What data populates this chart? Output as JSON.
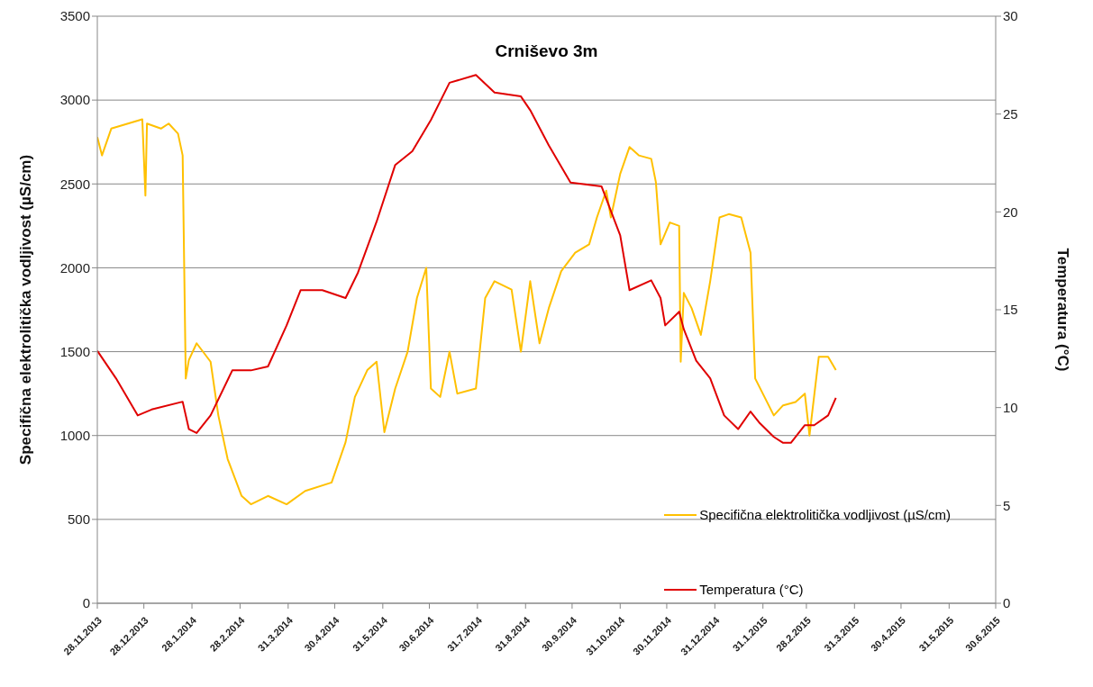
{
  "chart_data": {
    "type": "line",
    "title": "Crniševo 3m",
    "ylabel": "Specifična elektrolitička vodljivost (µS/cm)",
    "y2label": "Temperatura (°C)",
    "xlim": [
      "2013-11-28",
      "2015-06-30"
    ],
    "xticks": [
      {
        "value": "2013-11-28",
        "label": "28.11.2013"
      },
      {
        "value": "2013-12-28",
        "label": "28.12.2013"
      },
      {
        "value": "2014-01-28",
        "label": "28.1.2014"
      },
      {
        "value": "2014-02-28",
        "label": "28.2.2014"
      },
      {
        "value": "2014-03-31",
        "label": "31.3.2014"
      },
      {
        "value": "2014-04-30",
        "label": "30.4.2014"
      },
      {
        "value": "2014-05-31",
        "label": "31.5.2014"
      },
      {
        "value": "2014-06-30",
        "label": "30.6.2014"
      },
      {
        "value": "2014-07-31",
        "label": "31.7.2014"
      },
      {
        "value": "2014-08-31",
        "label": "31.8.2014"
      },
      {
        "value": "2014-09-30",
        "label": "30.9.2014"
      },
      {
        "value": "2014-10-31",
        "label": "31.10.2014"
      },
      {
        "value": "2014-11-30",
        "label": "30.11.2014"
      },
      {
        "value": "2014-12-31",
        "label": "31.12.2014"
      },
      {
        "value": "2015-01-31",
        "label": "31.1.2015"
      },
      {
        "value": "2015-02-28",
        "label": "28.2.2015"
      },
      {
        "value": "2015-03-31",
        "label": "31.3.2015"
      },
      {
        "value": "2015-04-30",
        "label": "30.4.2015"
      },
      {
        "value": "2015-05-31",
        "label": "31.5.2015"
      },
      {
        "value": "2015-06-30",
        "label": "30.6.2015"
      }
    ],
    "ylim": [
      0,
      3500
    ],
    "yticks": [
      0,
      500,
      1000,
      1500,
      2000,
      2500,
      3000,
      3500
    ],
    "y2lim": [
      0,
      30
    ],
    "y2ticks": [
      0,
      5,
      10,
      15,
      20,
      25,
      30
    ],
    "grid": "y",
    "legend": "bottom right",
    "marker": "none",
    "line_style": "solid",
    "series": [
      {
        "name": "Specifična elektrolitička vodljivost (µS/cm)",
        "color": "#ffc000",
        "x": [
          "2013-11-28",
          "2013-12-01",
          "2013-12-07",
          "2013-12-27",
          "2013-12-29",
          "2013-12-30",
          "2014-01-08",
          "2014-01-13",
          "2014-01-19",
          "2014-01-22",
          "2014-01-24",
          "2014-01-26",
          "2014-01-31",
          "2014-02-09",
          "2014-02-14",
          "2014-02-20",
          "2014-03-01",
          "2014-03-07",
          "2014-03-18",
          "2014-03-30",
          "2014-04-11",
          "2014-04-28",
          "2014-05-07",
          "2014-05-13",
          "2014-05-21",
          "2014-05-27",
          "2014-06-01",
          "2014-06-08",
          "2014-06-16",
          "2014-06-22",
          "2014-06-28",
          "2014-07-01",
          "2014-07-07",
          "2014-07-13",
          "2014-07-18",
          "2014-07-30",
          "2014-08-05",
          "2014-08-11",
          "2014-08-22",
          "2014-08-28",
          "2014-09-03",
          "2014-09-09",
          "2014-09-15",
          "2014-09-23",
          "2014-10-02",
          "2014-10-11",
          "2014-10-16",
          "2014-10-22",
          "2014-10-25",
          "2014-10-31",
          "2014-11-06",
          "2014-11-12",
          "2014-11-20",
          "2014-11-23",
          "2014-11-26",
          "2014-12-02",
          "2014-12-08",
          "2014-12-09",
          "2014-12-11",
          "2014-12-16",
          "2014-12-22",
          "2014-12-28",
          "2015-01-03",
          "2015-01-09",
          "2015-01-17",
          "2015-01-23",
          "2015-01-26",
          "2015-02-01",
          "2015-02-07",
          "2015-02-13",
          "2015-02-21",
          "2015-02-27",
          "2015-03-02",
          "2015-03-08",
          "2015-03-14",
          "2015-03-19"
        ],
        "values": [
          2780,
          2670,
          2830,
          2885,
          2430,
          2860,
          2830,
          2860,
          2800,
          2670,
          1340,
          1450,
          1550,
          1440,
          1120,
          860,
          640,
          590,
          640,
          590,
          670,
          720,
          960,
          1230,
          1390,
          1440,
          1020,
          1280,
          1500,
          1820,
          2000,
          1280,
          1230,
          1500,
          1250,
          1280,
          1820,
          1920,
          1870,
          1500,
          1920,
          1550,
          1760,
          1980,
          2090,
          2140,
          2300,
          2460,
          2300,
          2560,
          2720,
          2670,
          2650,
          2510,
          2140,
          2270,
          2250,
          1440,
          1850,
          1760,
          1600,
          1920,
          2300,
          2320,
          2300,
          2090,
          1340,
          1230,
          1120,
          1180,
          1200,
          1250,
          1000,
          1470,
          1470,
          1390
        ]
      },
      {
        "name": "Temperatura (°C)",
        "color": "#e00000",
        "axis": "y2",
        "x": [
          "2013-11-28",
          "2013-12-10",
          "2013-12-24",
          "2014-01-02",
          "2014-01-22",
          "2014-01-26",
          "2014-01-31",
          "2014-02-09",
          "2014-02-23",
          "2014-03-07",
          "2014-03-18",
          "2014-03-30",
          "2014-04-08",
          "2014-04-22",
          "2014-05-07",
          "2014-05-15",
          "2014-05-27",
          "2014-06-08",
          "2014-06-19",
          "2014-07-01",
          "2014-07-13",
          "2014-07-30",
          "2014-08-11",
          "2014-08-28",
          "2014-09-03",
          "2014-09-15",
          "2014-09-29",
          "2014-10-19",
          "2014-10-31",
          "2014-11-06",
          "2014-11-20",
          "2014-11-26",
          "2014-11-29",
          "2014-12-08",
          "2014-12-11",
          "2014-12-19",
          "2014-12-28",
          "2015-01-06",
          "2015-01-15",
          "2015-01-23",
          "2015-01-29",
          "2015-02-07",
          "2015-02-13",
          "2015-02-18",
          "2015-02-27",
          "2015-03-05",
          "2015-03-14",
          "2015-03-19"
        ],
        "values": [
          12.9,
          11.5,
          9.6,
          9.9,
          10.3,
          8.9,
          8.7,
          9.6,
          11.9,
          11.9,
          12.1,
          14.2,
          16.0,
          16.0,
          15.6,
          16.9,
          19.5,
          22.4,
          23.1,
          24.7,
          26.6,
          27.0,
          26.1,
          25.9,
          25.2,
          23.4,
          21.5,
          21.3,
          18.8,
          16.0,
          16.5,
          15.6,
          14.2,
          14.9,
          14.0,
          12.4,
          11.5,
          9.6,
          8.9,
          9.8,
          9.2,
          8.5,
          8.2,
          8.2,
          9.1,
          9.1,
          9.6,
          10.5
        ]
      }
    ]
  }
}
